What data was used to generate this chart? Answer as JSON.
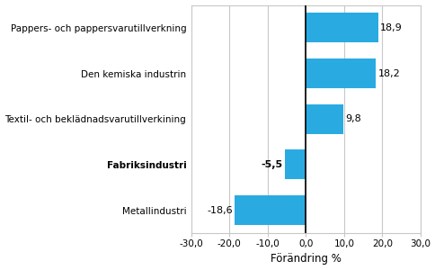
{
  "categories": [
    "Metallindustri",
    "Fabriksindustri",
    "Textil- och beklädnadsvarutillverkining",
    "Den kemiska industrin",
    "Pappers- och pappersvarutillverkning"
  ],
  "values": [
    -18.6,
    -5.5,
    9.8,
    18.2,
    18.9
  ],
  "bar_color": "#29abe2",
  "xlim": [
    -30,
    30
  ],
  "xticks": [
    -30,
    -20,
    -10,
    0,
    10,
    20,
    30
  ],
  "xtick_labels": [
    "-30,0",
    "-20,0",
    "-10,0",
    "0,0",
    "10,0",
    "20,0",
    "30,0"
  ],
  "xlabel": "Förändring %",
  "bold_index": 1,
  "value_labels": [
    "-18,6",
    "-5,5",
    "9,8",
    "18,2",
    "18,9"
  ],
  "background_color": "#ffffff",
  "grid_color": "#c8c8c8",
  "figsize": [
    4.85,
    3.0
  ],
  "dpi": 100
}
